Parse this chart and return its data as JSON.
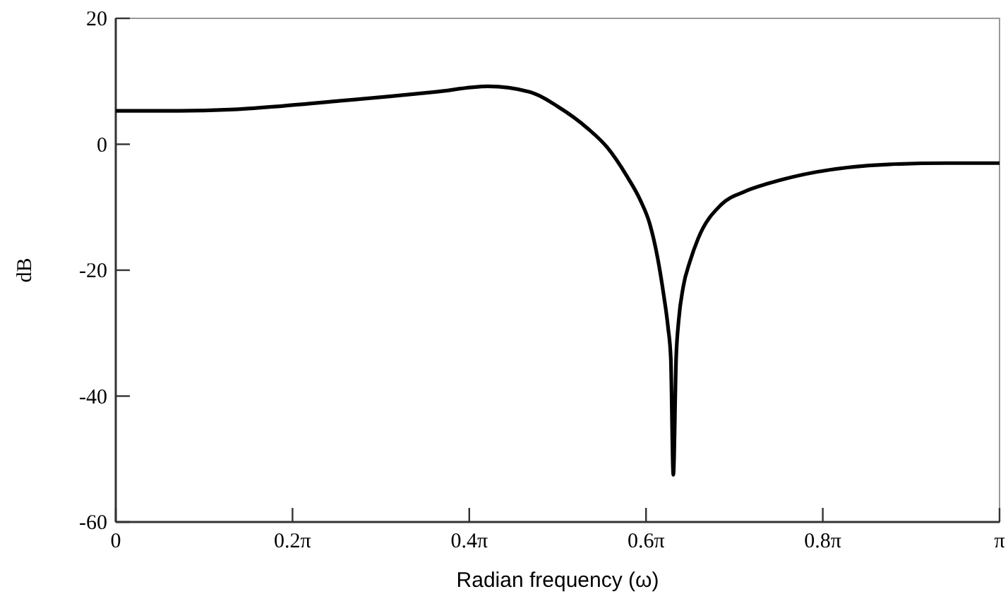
{
  "chart_data": {
    "type": "line",
    "xlabel": "Radian frequency (ω)",
    "ylabel": "dB",
    "x": [
      0,
      0.188,
      0.405,
      0.597,
      0.798,
      0.974,
      1.134,
      1.323,
      1.473,
      1.571,
      1.678,
      1.747,
      1.816,
      1.866,
      1.898,
      1.926,
      1.948,
      1.963,
      1.973,
      1.982,
      1.992,
      2.001,
      2.017,
      2.042,
      2.07,
      2.152,
      2.231,
      2.322,
      2.491,
      2.746,
      2.953,
      3.1416
    ],
    "series": [
      {
        "color": "#000000",
        "values": [
          5.3,
          5.3,
          5.5,
          6.1,
          6.9,
          7.6,
          8.3,
          9.2,
          8.3,
          6,
          2.5,
          -0.5,
          -5,
          -9,
          -12.6,
          -18,
          -24,
          -29,
          -34,
          -52.5,
          -34,
          -28,
          -22.7,
          -18.5,
          -15,
          -9.6,
          -7.6,
          -6.2,
          -4.4,
          -3.2,
          -3,
          -3
        ]
      }
    ],
    "xlim": [
      0,
      3.1416
    ],
    "xticks": [
      0,
      {
        "value": 0.6283,
        "label": "0.2π"
      },
      {
        "value": 1.2566,
        "label": "0.4π"
      },
      {
        "value": 1.885,
        "label": "0.6π"
      },
      {
        "value": 2.5133,
        "label": "0.8π"
      },
      {
        "value": 3.1416,
        "label": "π"
      }
    ],
    "ylim": [
      -60,
      20
    ],
    "yticks": [
      -60,
      -40,
      -20,
      0,
      20
    ],
    "grid": false,
    "marker": "none",
    "line_style": "solid"
  }
}
